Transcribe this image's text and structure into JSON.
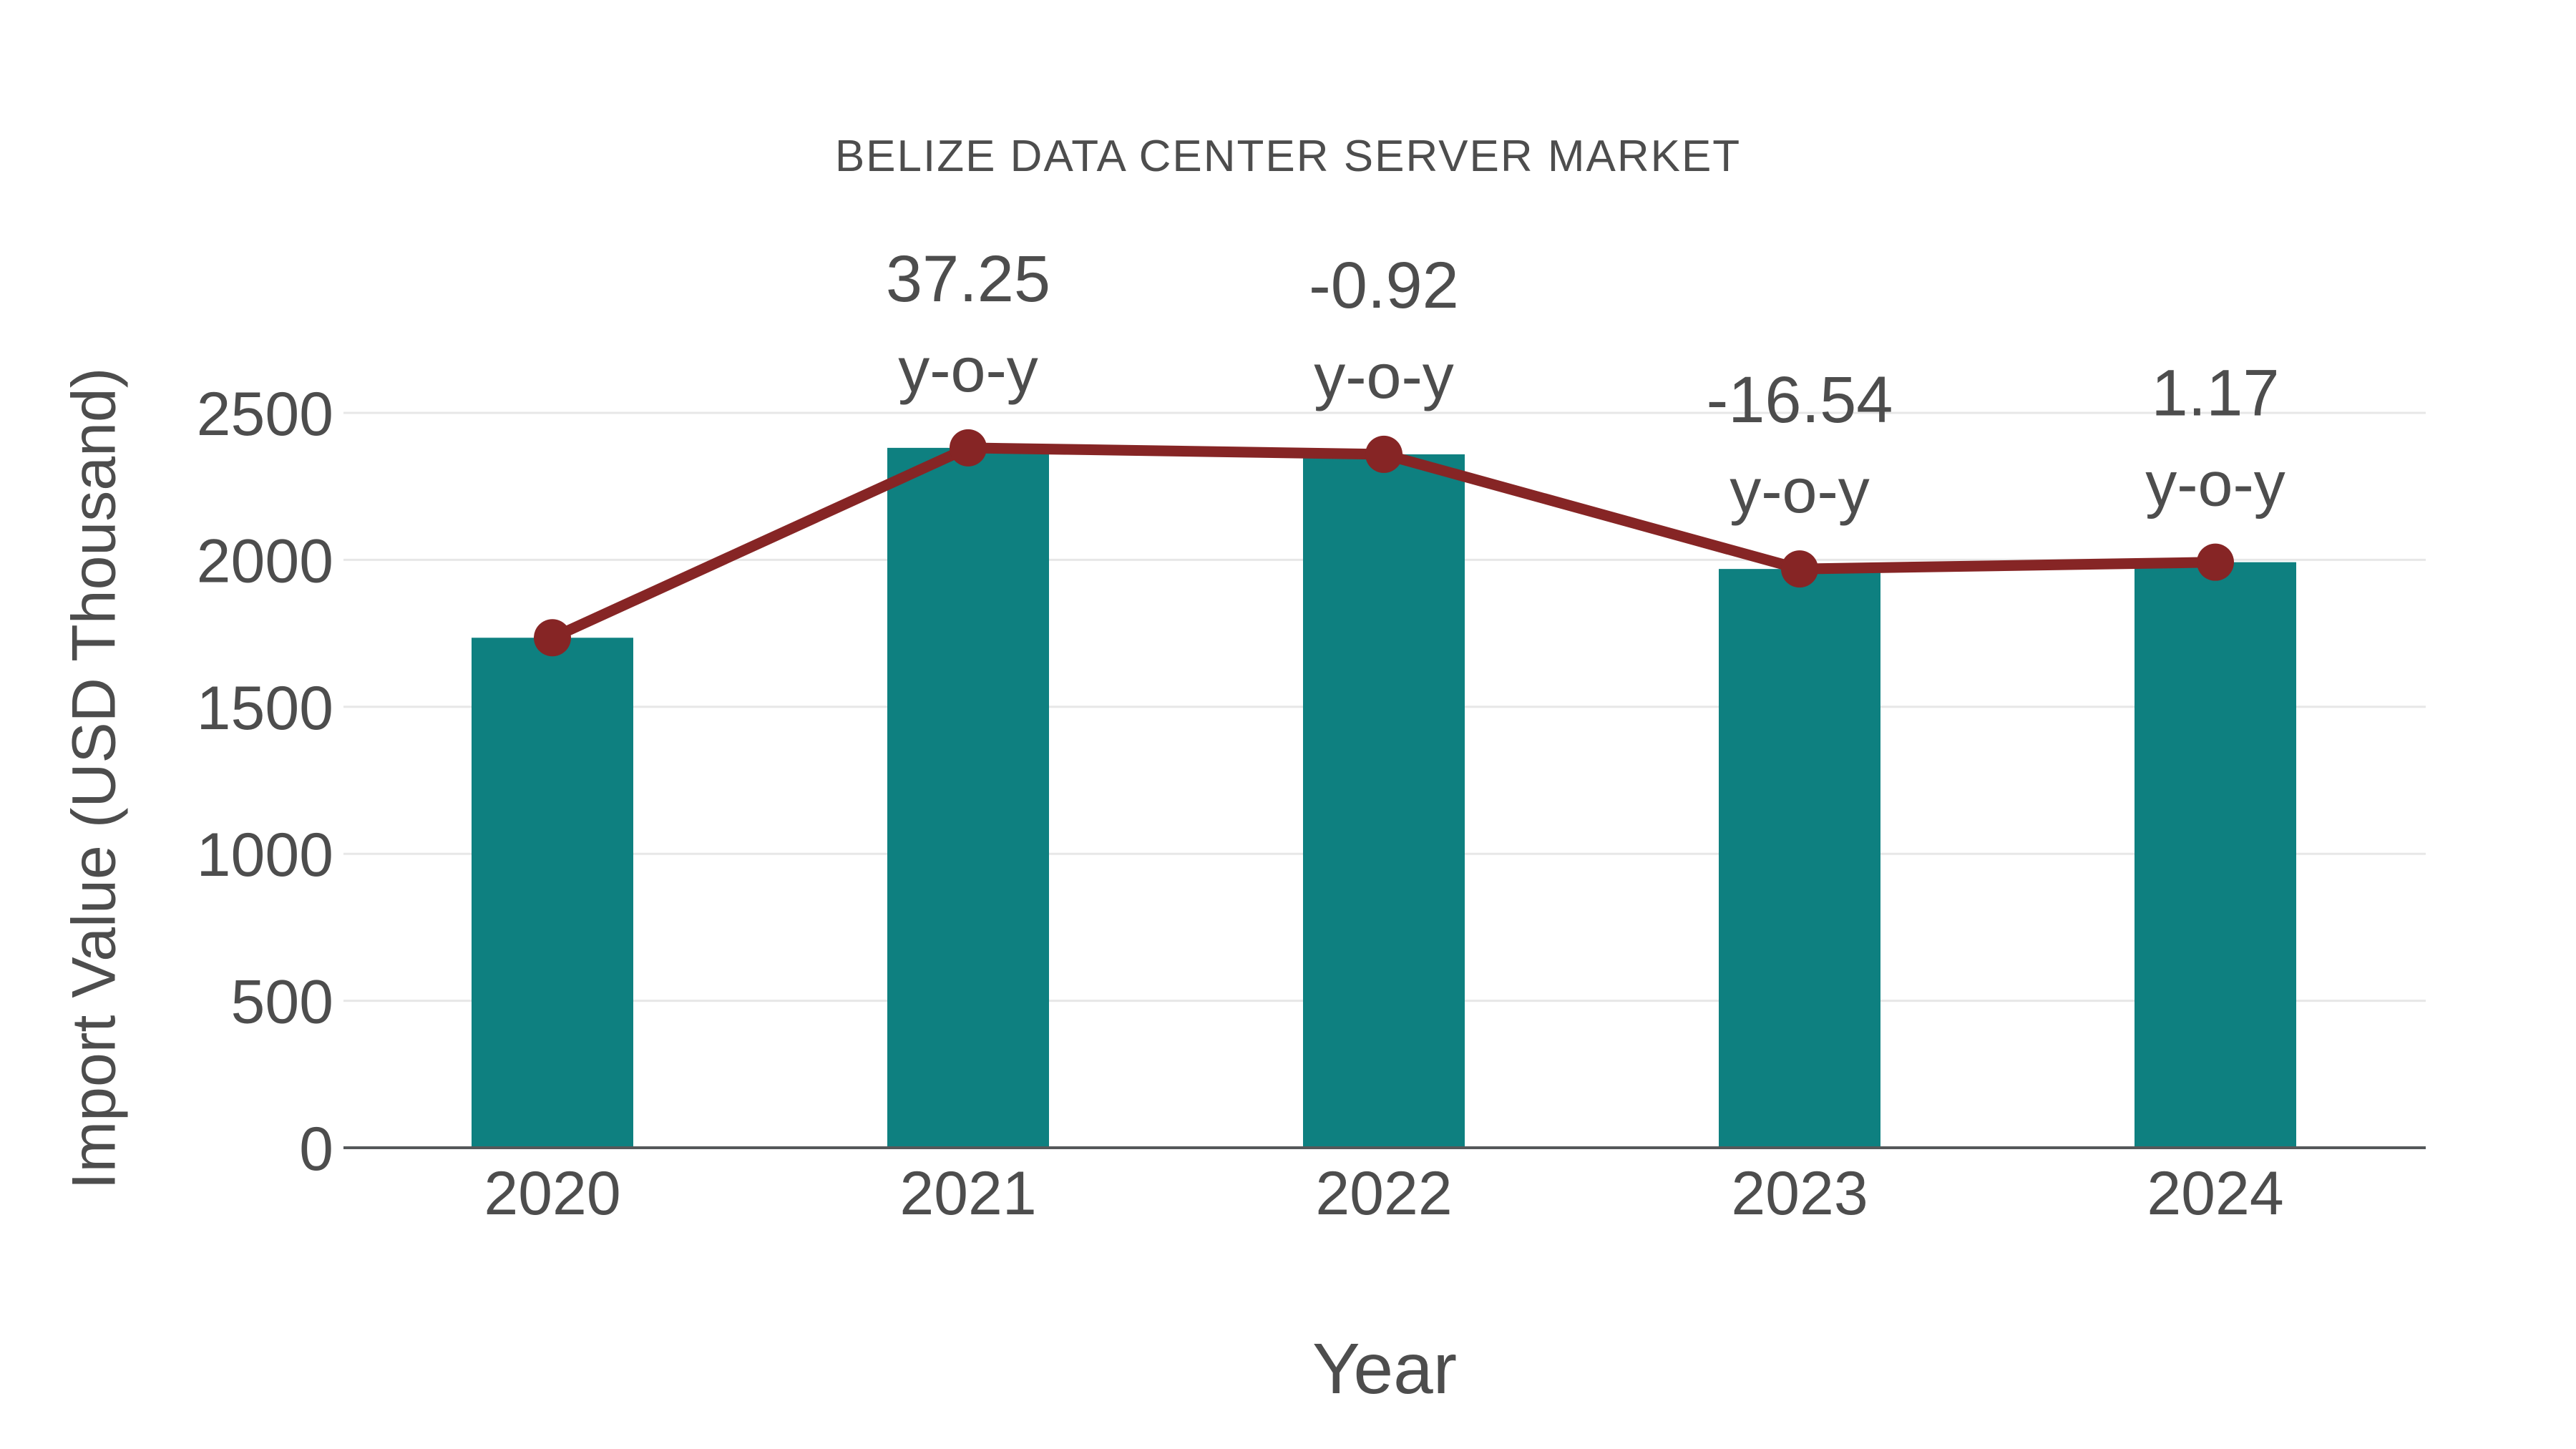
{
  "title": "BELIZE DATA CENTER SERVER MARKET",
  "colors": {
    "bar": "#0e8080",
    "line": "#862525",
    "grid": "#e7e7e7",
    "axis": "#55585a",
    "text": "#4d4d4d"
  },
  "chart_data": {
    "type": "bar",
    "title": "BELIZE DATA CENTER SERVER MARKET",
    "xlabel": "Year",
    "ylabel": "Import Value (USD Thousand)",
    "categories": [
      "2020",
      "2021",
      "2022",
      "2023",
      "2024"
    ],
    "series": [
      {
        "name": "Import Value (USD Thousand) bars",
        "type": "bar",
        "values": [
          1735,
          2381,
          2359,
          1969,
          1992
        ]
      },
      {
        "name": "Import Value trend line",
        "type": "line",
        "values": [
          1735,
          2381,
          2359,
          1969,
          1992
        ]
      }
    ],
    "annotations": [
      {
        "category": "2021",
        "line1": "37.25",
        "line2": "y-o-y"
      },
      {
        "category": "2022",
        "line1": "-0.92",
        "line2": "y-o-y"
      },
      {
        "category": "2023",
        "line1": "-16.54",
        "line2": "y-o-y"
      },
      {
        "category": "2024",
        "line1": "1.17",
        "line2": "y-o-y"
      }
    ],
    "ylim": [
      0,
      2500
    ],
    "yticks": [
      0,
      500,
      1000,
      1500,
      2000,
      2500
    ],
    "grid": "horizontal-light",
    "legend": "none"
  }
}
